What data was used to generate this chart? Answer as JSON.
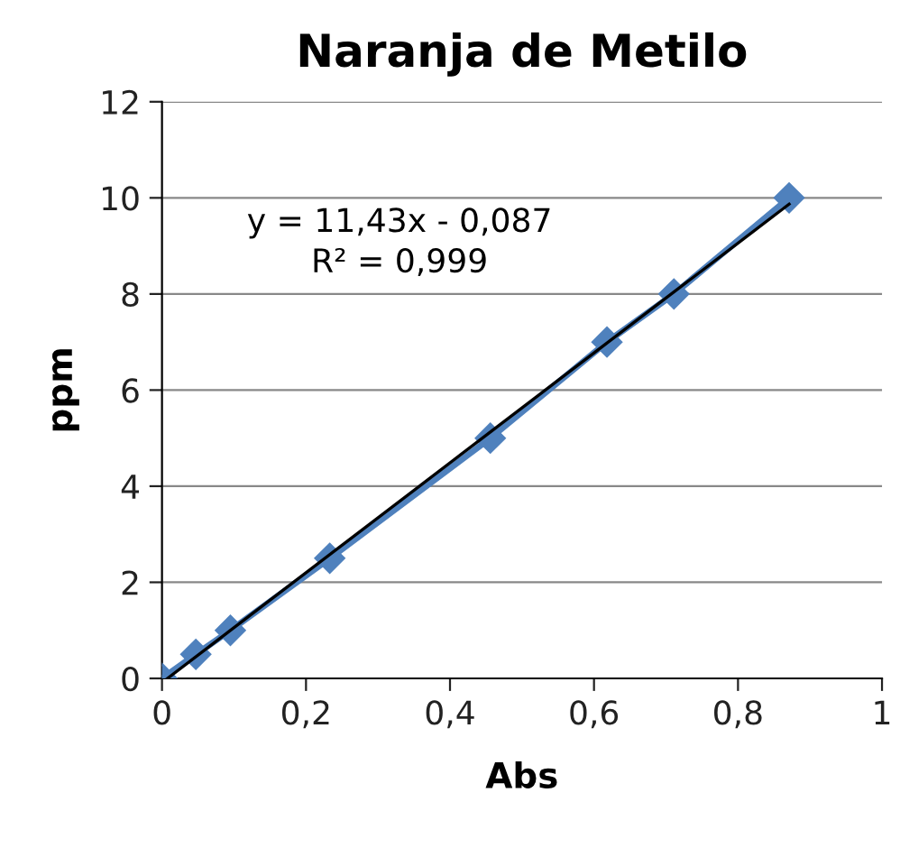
{
  "chart_data": {
    "type": "line",
    "title": "Naranja de Metilo",
    "xlabel": "Abs",
    "ylabel": "ppm",
    "annotations": [
      "y = 11,43x - 0,087",
      "R² = 0,999"
    ],
    "series": [
      {
        "color": "#4f81bd",
        "marker": "diamond",
        "x": [
          0,
          0.047,
          0.095,
          0.233,
          0.456,
          0.618,
          0.711,
          0.871
        ],
        "values": [
          0,
          0.5,
          1,
          2.5,
          5,
          7,
          8,
          10
        ]
      },
      {
        "color": "#000000",
        "marker": "none",
        "x": [
          0.0076,
          0.871
        ],
        "values": [
          0,
          9.87
        ]
      }
    ],
    "xlim": [
      0,
      1
    ],
    "xticks": [
      {
        "value": 0,
        "label": "0"
      },
      {
        "value": 0.2,
        "label": "0,2"
      },
      {
        "value": 0.4,
        "label": "0,4"
      },
      {
        "value": 0.6,
        "label": "0,6"
      },
      {
        "value": 0.8,
        "label": "0,8"
      },
      {
        "value": 1,
        "label": "1"
      }
    ],
    "ylim": [
      0,
      12
    ],
    "yticks": [
      0,
      2,
      4,
      6,
      8,
      10,
      12
    ],
    "grid": "y"
  }
}
